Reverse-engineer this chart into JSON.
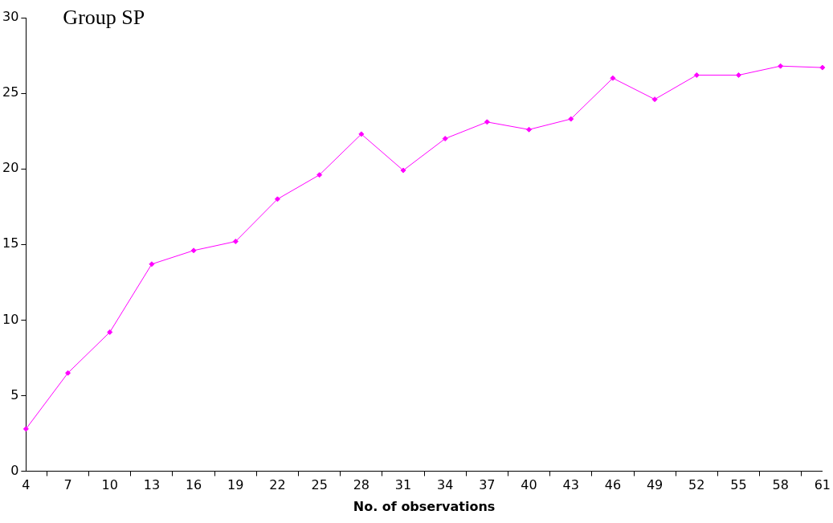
{
  "chart_data": {
    "type": "line",
    "title": "Group SP",
    "xlabel": "No. of observations",
    "categories": [
      "4",
      "7",
      "10",
      "13",
      "16",
      "19",
      "22",
      "25",
      "28",
      "31",
      "34",
      "37",
      "40",
      "43",
      "46",
      "49",
      "52",
      "55",
      "58",
      "61"
    ],
    "series": [
      {
        "color": "#ff00ff",
        "values": [
          2.8,
          6.5,
          9.2,
          13.7,
          14.6,
          15.2,
          18.0,
          19.6,
          22.3,
          19.9,
          22.0,
          23.1,
          22.6,
          23.3,
          26.0,
          24.6,
          26.2,
          26.2,
          26.8,
          26.7
        ]
      }
    ],
    "ylim": [
      0,
      30
    ],
    "yticks": [
      0,
      5,
      10,
      15,
      20,
      25,
      30
    ],
    "grid": false,
    "legend": false,
    "marker": "diamond",
    "line_style": "solid"
  }
}
